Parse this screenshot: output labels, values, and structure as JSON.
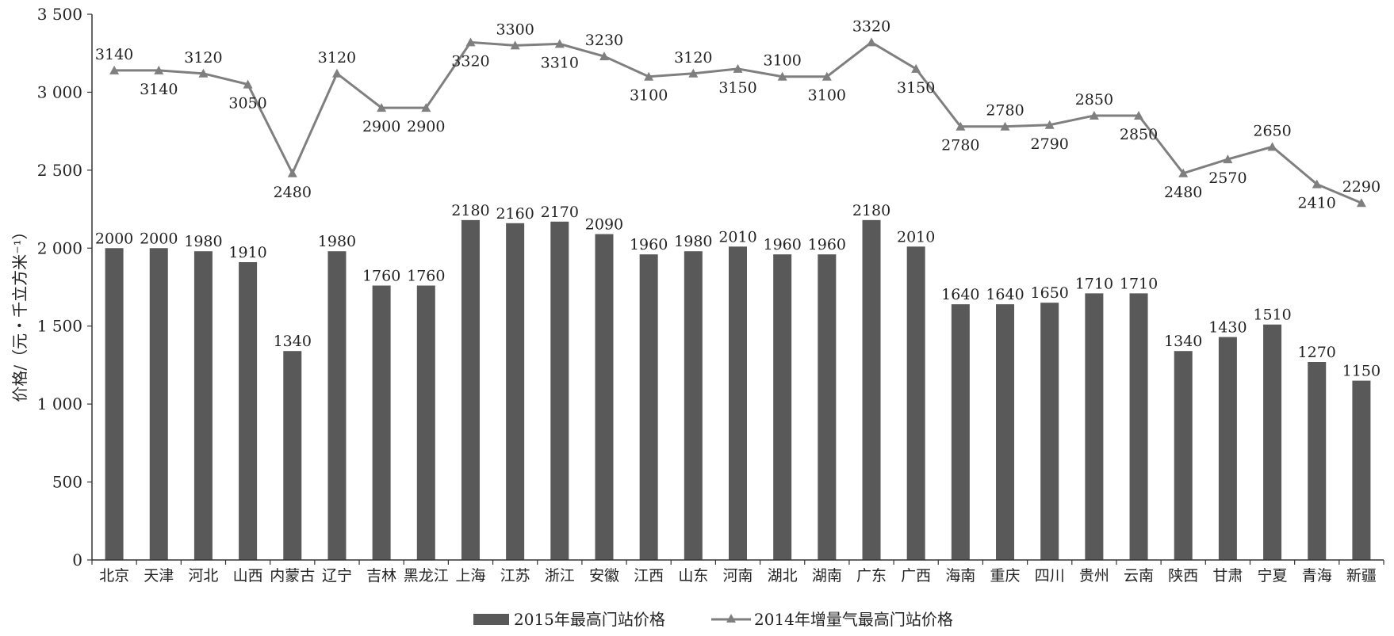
{
  "chart_data": {
    "type": "bar",
    "ylabel": "价格/（元・千立方米⁻¹）",
    "ylim": [
      0,
      3500
    ],
    "yticks": [
      0,
      500,
      1000,
      1500,
      2000,
      2500,
      3000,
      3500
    ],
    "ytick_labels": [
      "0",
      "500",
      "1 000",
      "1 500",
      "2 000",
      "2 500",
      "3 000",
      "3 500"
    ],
    "grid": false,
    "legend_position": "bottom",
    "categories": [
      "北京",
      "天津",
      "河北",
      "山西",
      "内蒙古",
      "辽宁",
      "吉林",
      "黑龙江",
      "上海",
      "江苏",
      "浙江",
      "安徽",
      "江西",
      "山东",
      "河南",
      "湖北",
      "湖南",
      "广东",
      "广西",
      "海南",
      "重庆",
      "四川",
      "贵州",
      "云南",
      "陕西",
      "甘肃",
      "宁夏",
      "青海",
      "新疆"
    ],
    "series": [
      {
        "name": "2015年最高门站价格",
        "type": "bar",
        "color": "#595959",
        "values": [
          2000,
          2000,
          1980,
          1910,
          1340,
          1980,
          1760,
          1760,
          2180,
          2160,
          2170,
          2090,
          1960,
          1980,
          2010,
          1960,
          1960,
          2180,
          2010,
          1640,
          1640,
          1650,
          1710,
          1710,
          1340,
          1430,
          1510,
          1270,
          1150
        ]
      },
      {
        "name": "2014年增量气最高门站价格",
        "type": "line",
        "marker": "triangle",
        "color": "#7f7f7f",
        "values": [
          3140,
          3140,
          3120,
          3050,
          2480,
          3120,
          2900,
          2900,
          3320,
          3300,
          3310,
          3230,
          3100,
          3120,
          3150,
          3100,
          3100,
          3320,
          3150,
          2780,
          2780,
          2790,
          2850,
          2850,
          2480,
          2570,
          2650,
          2410,
          2290
        ]
      }
    ],
    "line_label_positions": [
      "above",
      "below",
      "above",
      "below",
      "below",
      "above",
      "below",
      "below",
      "below",
      "above",
      "below",
      "above",
      "below",
      "above",
      "below",
      "above",
      "below",
      "above",
      "below",
      "below",
      "above",
      "below",
      "above",
      "below",
      "below",
      "below",
      "above",
      "below",
      "above"
    ]
  }
}
